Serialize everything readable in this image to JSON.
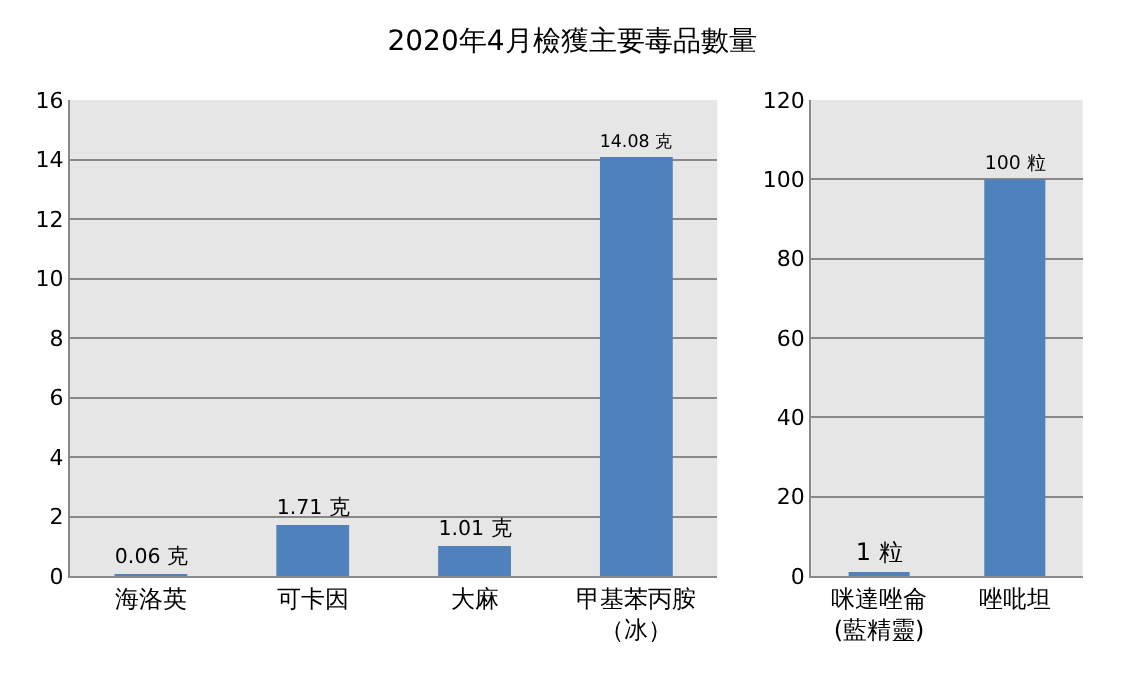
{
  "chart_data": [
    {
      "type": "bar",
      "title": "2020年4月檢獲主要毒品數量",
      "categories": [
        "海洛英",
        "可卡因",
        "大麻",
        "甲基苯丙胺（冰）"
      ],
      "values": [
        0.06,
        1.71,
        1.01,
        14.08
      ],
      "value_labels": [
        "0.06 克",
        "1.71 克",
        "1.01 克",
        "14.08 克"
      ],
      "color": "#4f81bd",
      "ylim": [
        0,
        16
      ],
      "yticks": [
        0,
        2,
        4,
        6,
        8,
        10,
        12,
        14,
        16
      ],
      "grid": "y"
    },
    {
      "type": "bar",
      "categories": [
        "咪達唑侖(藍精靈)",
        "唑吡坦"
      ],
      "values": [
        1,
        100
      ],
      "value_labels": [
        "1 粒",
        "100 粒"
      ],
      "color": "#4f81bd",
      "ylim": [
        0,
        120
      ],
      "yticks": [
        0,
        20,
        40,
        60,
        80,
        100,
        120
      ],
      "grid": "y"
    }
  ]
}
